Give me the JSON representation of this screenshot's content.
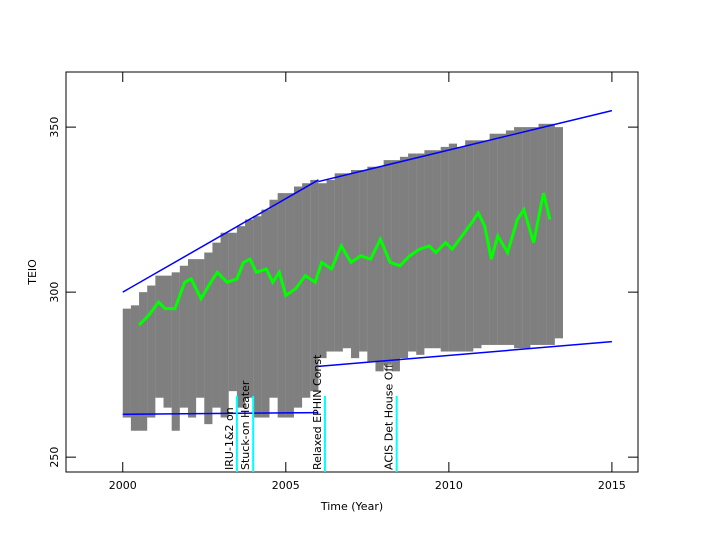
{
  "chart_data": {
    "type": "scatter",
    "xlabel": "Time (Year)",
    "ylabel": "TEIO",
    "xlim": [
      1998.26,
      2015.8
    ],
    "ylim": [
      245.5,
      366.7
    ],
    "xticks": [
      2000,
      2005,
      2010,
      2015
    ],
    "yticks": [
      250,
      300,
      350
    ],
    "cloud": {
      "color": "#000000",
      "x": [
        2000.0,
        2000.25,
        2000.5,
        2000.75,
        2001.0,
        2001.25,
        2001.5,
        2001.75,
        2002.0,
        2002.25,
        2002.5,
        2002.75,
        2003.0,
        2003.25,
        2003.5,
        2003.75,
        2004.0,
        2004.25,
        2004.5,
        2004.75,
        2005.0,
        2005.25,
        2005.5,
        2005.75,
        2006.0,
        2006.25,
        2006.5,
        2006.75,
        2007.0,
        2007.25,
        2007.5,
        2007.75,
        2008.0,
        2008.25,
        2008.5,
        2008.75,
        2009.0,
        2009.25,
        2009.5,
        2009.75,
        2010.0,
        2010.25,
        2010.5,
        2010.75,
        2011.0,
        2011.25,
        2011.5,
        2011.75,
        2012.0,
        2012.25,
        2012.5,
        2012.75,
        2013.0,
        2013.25
      ],
      "low": [
        262,
        258,
        258,
        262,
        268,
        265,
        258,
        265,
        262,
        268,
        260,
        265,
        262,
        270,
        265,
        268,
        262,
        262,
        268,
        262,
        262,
        265,
        268,
        270,
        280,
        282,
        282,
        283,
        280,
        282,
        279,
        276,
        278,
        276,
        280,
        282,
        281,
        283,
        283,
        282,
        282,
        282,
        282,
        283,
        284,
        284,
        284,
        284,
        283,
        283,
        284,
        284,
        284,
        286
      ],
      "high": [
        295,
        296,
        300,
        302,
        305,
        305,
        306,
        308,
        310,
        310,
        312,
        315,
        318,
        318,
        320,
        322,
        323,
        325,
        328,
        330,
        330,
        332,
        333,
        334,
        333,
        334,
        336,
        336,
        337,
        337,
        338,
        338,
        340,
        340,
        341,
        342,
        342,
        343,
        343,
        344,
        345,
        344,
        346,
        346,
        346,
        348,
        348,
        349,
        350,
        350,
        350,
        351,
        351,
        350
      ]
    },
    "mean": {
      "color": "#00ff00",
      "x": [
        2000.5,
        2000.8,
        2001.1,
        2001.3,
        2001.6,
        2001.9,
        2002.1,
        2002.4,
        2002.7,
        2002.9,
        2003.2,
        2003.5,
        2003.7,
        2003.9,
        2004.1,
        2004.4,
        2004.6,
        2004.8,
        2005.0,
        2005.3,
        2005.6,
        2005.9,
        2006.1,
        2006.4,
        2006.7,
        2007.0,
        2007.3,
        2007.6,
        2007.9,
        2008.2,
        2008.5,
        2008.8,
        2009.1,
        2009.4,
        2009.6,
        2009.9,
        2010.1,
        2010.4,
        2010.7,
        2010.9,
        2011.1,
        2011.3,
        2011.5,
        2011.8,
        2012.1,
        2012.3,
        2012.6,
        2012.9,
        2013.1
      ],
      "values": [
        290,
        293,
        297,
        295,
        295,
        303,
        304,
        298,
        303,
        306,
        303,
        304,
        309,
        310,
        306,
        307,
        303,
        306,
        299,
        301,
        305,
        303,
        309,
        307,
        314,
        309,
        311,
        310,
        316,
        309,
        308,
        311,
        313,
        314,
        312,
        315,
        313,
        317,
        321,
        324,
        320,
        310,
        317,
        312,
        322,
        325,
        315,
        330,
        322
      ]
    },
    "limits": [
      {
        "color": "#0000ff",
        "x": [
          2000.0,
          2006.0
        ],
        "values": [
          300,
          334
        ]
      },
      {
        "color": "#0000ff",
        "x": [
          2006.0,
          2015.0
        ],
        "values": [
          333.5,
          355
        ]
      },
      {
        "color": "#0000ff",
        "x": [
          2000.0,
          2006.0
        ],
        "values": [
          263,
          263.5
        ]
      },
      {
        "color": "#0000ff",
        "x": [
          2006.0,
          2015.0
        ],
        "values": [
          277.5,
          285
        ]
      }
    ],
    "events": [
      {
        "x": 2003.5,
        "label": "IRU-1&2 on",
        "color": "#00ffff"
      },
      {
        "x": 2004.0,
        "label": "Stuck-on Heater",
        "color": "#00ffff"
      },
      {
        "x": 2006.2,
        "label": "Relaxed EPHIN Const",
        "color": "#00ffff"
      },
      {
        "x": 2008.4,
        "label": "ACIS Det House Off",
        "color": "#00ffff"
      }
    ]
  }
}
